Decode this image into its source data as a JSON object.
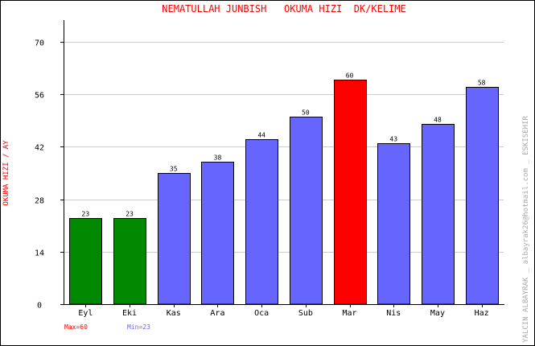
{
  "chart_data": {
    "type": "bar",
    "title": "NEMATULLAH JUNBISH   OKUMA HIZI  DK/KELIME",
    "ylabel": "OKUMA HIZI / AY",
    "xlabel": "",
    "side_note": "YALCIN ALBAYRAK _ albayrak26@hotmail.com _ ESKISEHIR",
    "categories": [
      "Eyl",
      "Eki",
      "Kas",
      "Ara",
      "Oca",
      "Sub",
      "Mar",
      "Nis",
      "May",
      "Haz"
    ],
    "values": [
      23,
      23,
      35,
      38,
      44,
      50,
      60,
      43,
      48,
      58
    ],
    "bar_colors": [
      "#008800",
      "#008800",
      "#6666ff",
      "#6666ff",
      "#6666ff",
      "#6666ff",
      "#ff0000",
      "#6666ff",
      "#6666ff",
      "#6666ff"
    ],
    "ylim": [
      0,
      70
    ],
    "yticks": [
      0,
      14,
      28,
      42,
      56,
      70
    ],
    "grid": true,
    "max_label": "Max=60",
    "min_label": "Min=23",
    "colors": {
      "title": "#ff0000",
      "max": "#ff0000",
      "min": "#6666ff",
      "min_bar": "#008800",
      "max_bar": "#ff0000",
      "normal_bar": "#6666ff",
      "grid": "#cccccc",
      "side_note": "#aaaaaa"
    }
  }
}
